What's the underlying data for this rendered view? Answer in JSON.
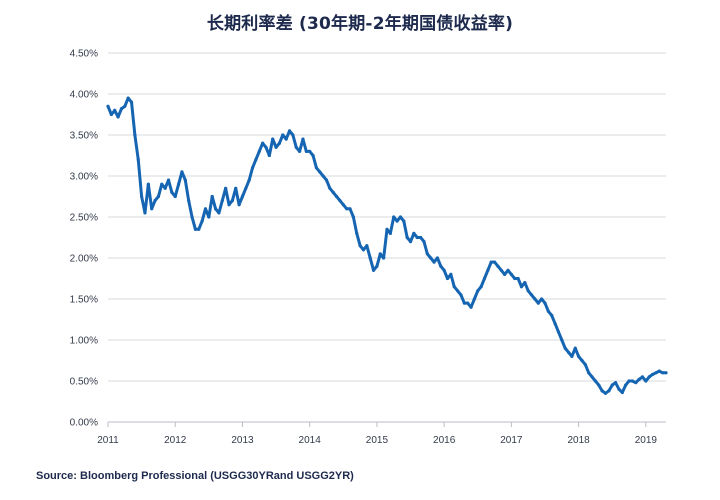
{
  "header": {
    "title": "长期利率差 (30年期-2年期国债收益率)"
  },
  "footer": {
    "source": "Source: Bloomberg Professional (USGG30YRand USGG2YR)"
  },
  "colors": {
    "line": "#1565b2",
    "grid": "#d4d8de",
    "text": "#1d2a4d"
  },
  "chart_data": {
    "type": "line",
    "title": "长期利率差 (30年期-2年期国债收益率)",
    "xlabel": "",
    "ylabel": "",
    "xlim": [
      2011.0,
      2019.3
    ],
    "ylim": [
      0.0,
      4.5
    ],
    "grid": "horizontal",
    "x_ticks": [
      2011,
      2012,
      2013,
      2014,
      2015,
      2016,
      2017,
      2018,
      2019
    ],
    "x_tick_labels": [
      "2011",
      "2012",
      "2013",
      "2014",
      "2015",
      "2016",
      "2017",
      "2018",
      "2019"
    ],
    "y_ticks": [
      0,
      0.5,
      1.0,
      1.5,
      2.0,
      2.5,
      3.0,
      3.5,
      4.0,
      4.5
    ],
    "y_tick_labels": [
      "0.00%",
      "0.50%",
      "1.00%",
      "1.50%",
      "2.00%",
      "2.50%",
      "3.00%",
      "3.50%",
      "4.00%",
      "4.50%"
    ],
    "series": [
      {
        "name": "",
        "x": [
          2011.0,
          2011.05,
          2011.1,
          2011.15,
          2011.2,
          2011.25,
          2011.3,
          2011.35,
          2011.4,
          2011.45,
          2011.5,
          2011.55,
          2011.6,
          2011.65,
          2011.7,
          2011.75,
          2011.8,
          2011.85,
          2011.9,
          2011.95,
          2012.0,
          2012.05,
          2012.1,
          2012.15,
          2012.2,
          2012.25,
          2012.3,
          2012.35,
          2012.4,
          2012.45,
          2012.5,
          2012.55,
          2012.6,
          2012.65,
          2012.7,
          2012.75,
          2012.8,
          2012.85,
          2012.9,
          2012.95,
          2013.0,
          2013.05,
          2013.1,
          2013.15,
          2013.2,
          2013.25,
          2013.3,
          2013.35,
          2013.4,
          2013.45,
          2013.5,
          2013.55,
          2013.6,
          2013.65,
          2013.7,
          2013.75,
          2013.8,
          2013.85,
          2013.9,
          2013.95,
          2014.0,
          2014.05,
          2014.1,
          2014.15,
          2014.2,
          2014.25,
          2014.3,
          2014.35,
          2014.4,
          2014.45,
          2014.5,
          2014.55,
          2014.6,
          2014.65,
          2014.7,
          2014.75,
          2014.8,
          2014.85,
          2014.9,
          2014.95,
          2015.0,
          2015.05,
          2015.1,
          2015.15,
          2015.2,
          2015.25,
          2015.3,
          2015.35,
          2015.4,
          2015.45,
          2015.5,
          2015.55,
          2015.6,
          2015.65,
          2015.7,
          2015.75,
          2015.8,
          2015.85,
          2015.9,
          2015.95,
          2016.0,
          2016.05,
          2016.1,
          2016.15,
          2016.2,
          2016.25,
          2016.3,
          2016.35,
          2016.4,
          2016.45,
          2016.5,
          2016.55,
          2016.6,
          2016.65,
          2016.7,
          2016.75,
          2016.8,
          2016.85,
          2016.9,
          2016.95,
          2017.0,
          2017.05,
          2017.1,
          2017.15,
          2017.2,
          2017.25,
          2017.3,
          2017.35,
          2017.4,
          2017.45,
          2017.5,
          2017.55,
          2017.6,
          2017.65,
          2017.7,
          2017.75,
          2017.8,
          2017.85,
          2017.9,
          2017.95,
          2018.0,
          2018.05,
          2018.1,
          2018.15,
          2018.2,
          2018.25,
          2018.3,
          2018.35,
          2018.4,
          2018.45,
          2018.5,
          2018.55,
          2018.6,
          2018.65,
          2018.7,
          2018.75,
          2018.8,
          2018.85,
          2018.9,
          2018.95,
          2019.0,
          2019.05,
          2019.1,
          2019.15,
          2019.2,
          2019.25,
          2019.3
        ],
        "values": [
          3.85,
          3.75,
          3.8,
          3.72,
          3.82,
          3.85,
          3.95,
          3.9,
          3.5,
          3.2,
          2.75,
          2.55,
          2.9,
          2.6,
          2.7,
          2.75,
          2.9,
          2.85,
          2.95,
          2.8,
          2.75,
          2.9,
          3.05,
          2.95,
          2.7,
          2.5,
          2.35,
          2.35,
          2.45,
          2.6,
          2.5,
          2.75,
          2.6,
          2.55,
          2.7,
          2.85,
          2.65,
          2.7,
          2.85,
          2.65,
          2.75,
          2.85,
          2.95,
          3.1,
          3.2,
          3.3,
          3.4,
          3.35,
          3.25,
          3.45,
          3.35,
          3.4,
          3.5,
          3.45,
          3.55,
          3.5,
          3.35,
          3.3,
          3.45,
          3.3,
          3.3,
          3.25,
          3.1,
          3.05,
          3.0,
          2.95,
          2.85,
          2.8,
          2.75,
          2.7,
          2.65,
          2.6,
          2.6,
          2.5,
          2.3,
          2.15,
          2.1,
          2.15,
          2.0,
          1.85,
          1.9,
          2.05,
          2.0,
          2.35,
          2.3,
          2.5,
          2.45,
          2.5,
          2.45,
          2.25,
          2.2,
          2.3,
          2.25,
          2.25,
          2.2,
          2.05,
          2.0,
          1.95,
          2.0,
          1.9,
          1.85,
          1.75,
          1.8,
          1.65,
          1.6,
          1.55,
          1.45,
          1.45,
          1.4,
          1.5,
          1.6,
          1.65,
          1.75,
          1.85,
          1.95,
          1.95,
          1.9,
          1.85,
          1.8,
          1.85,
          1.8,
          1.75,
          1.75,
          1.65,
          1.7,
          1.6,
          1.55,
          1.5,
          1.45,
          1.5,
          1.45,
          1.35,
          1.3,
          1.2,
          1.1,
          1.0,
          0.9,
          0.85,
          0.8,
          0.9,
          0.8,
          0.75,
          0.7,
          0.6,
          0.55,
          0.5,
          0.45,
          0.38,
          0.35,
          0.38,
          0.45,
          0.48,
          0.4,
          0.36,
          0.45,
          0.5,
          0.5,
          0.48,
          0.52,
          0.55,
          0.5,
          0.55,
          0.58,
          0.6,
          0.62,
          0.6,
          0.6
        ]
      }
    ]
  }
}
